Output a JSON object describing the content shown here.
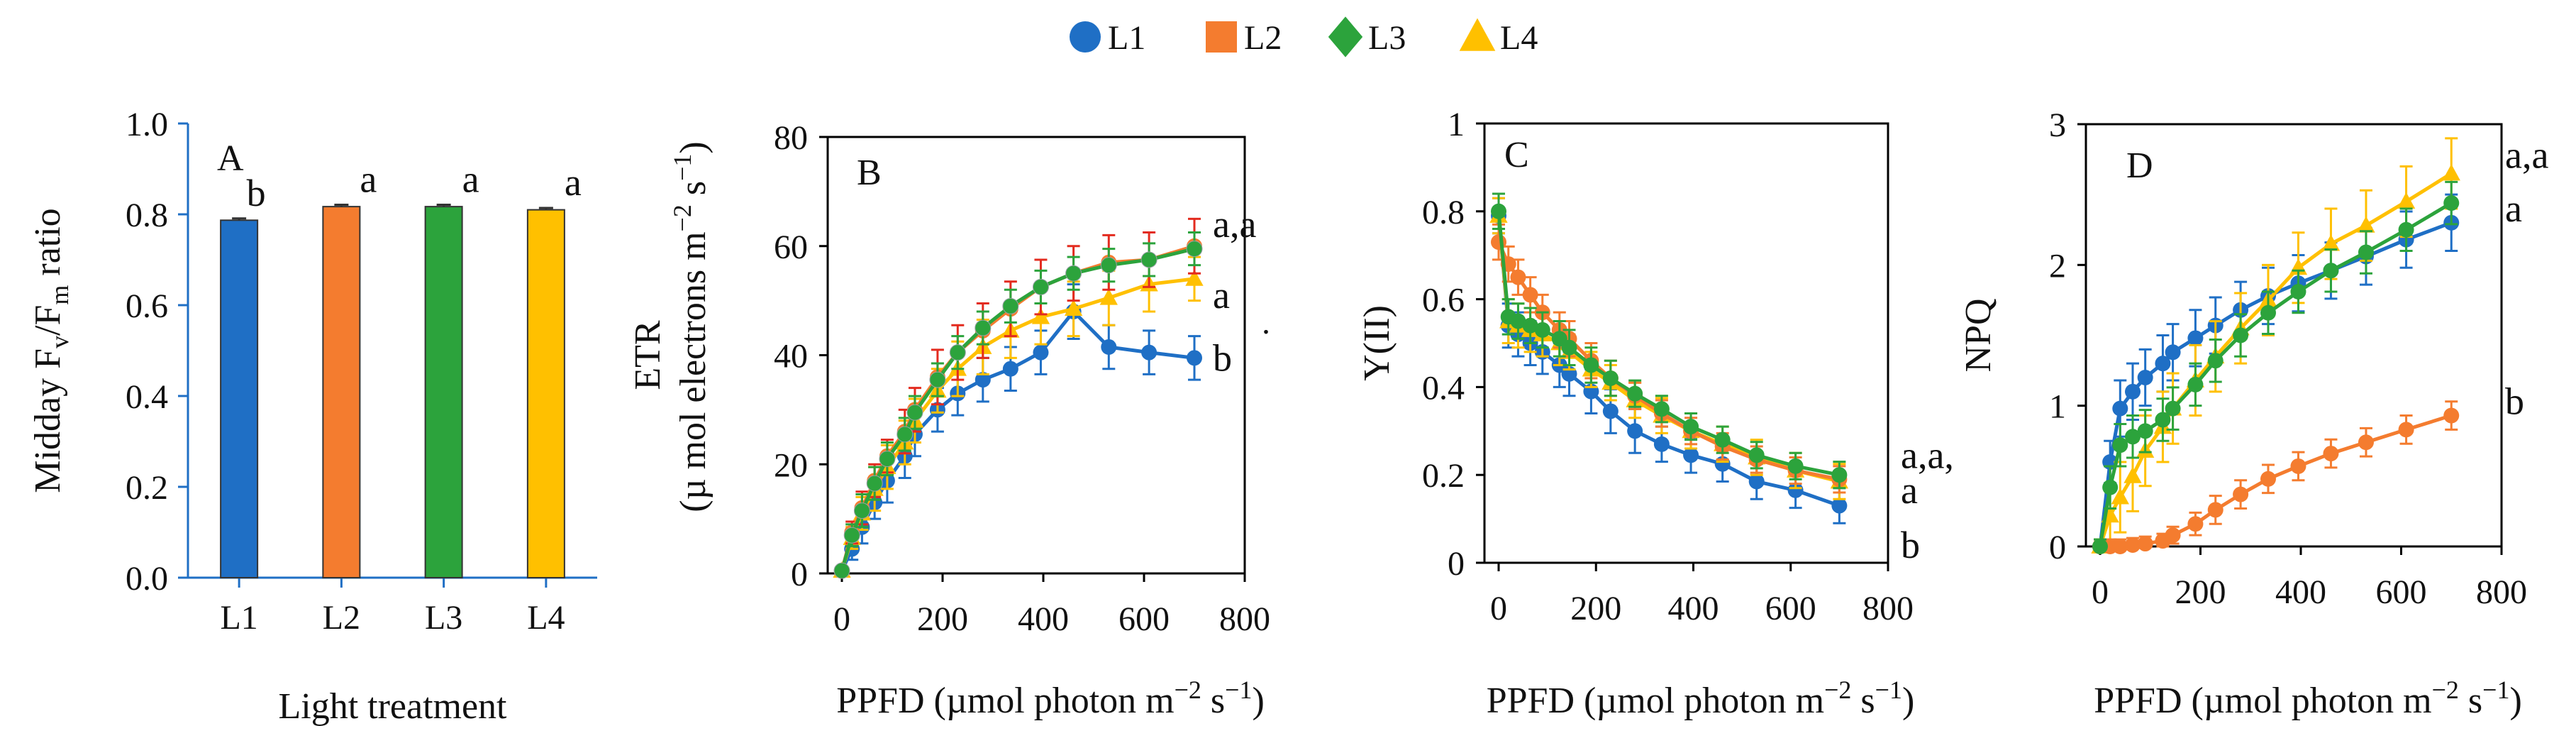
{
  "legend": [
    {
      "label": "L1",
      "color": "#1f6fc5",
      "marker": "circle"
    },
    {
      "label": "L2",
      "color": "#f47c2f",
      "marker": "square"
    },
    {
      "label": "L3",
      "color": "#2ca33c",
      "marker": "diamond"
    },
    {
      "label": "L4",
      "color": "#ffc000",
      "marker": "triangle"
    }
  ],
  "colors": {
    "L1": "#1f6fc5",
    "L2": "#f47c2f",
    "L3": "#2ca33c",
    "L4": "#ffc000",
    "L2_err": "#e32b1f",
    "axis_blue": "#1f6fc5",
    "axis_black": "#000000"
  },
  "chart_data": [
    {
      "id": "A",
      "type": "bar",
      "panel_label": "A",
      "categories": [
        "L1",
        "L2",
        "L3",
        "L4"
      ],
      "values": [
        0.787,
        0.817,
        0.817,
        0.81
      ],
      "errors": [
        0.004,
        0.004,
        0.004,
        0.004
      ],
      "significance": [
        "b",
        "a",
        "a",
        "a"
      ],
      "ylabel_pre": "Midday F",
      "ylabel_v": "v",
      "ylabel_mid": "/F",
      "ylabel_m": "m",
      "ylabel_post": " ratio",
      "xlabel": "Light treatment",
      "ylim": [
        0,
        1.0
      ],
      "yticks": [
        "0.0",
        "0.2",
        "0.4",
        "0.6",
        "0.8",
        "1.0"
      ]
    },
    {
      "id": "B",
      "type": "line",
      "panel_label": "B",
      "ylabel_line1": "ETR",
      "ylabel_line2_pre": "(µ mol electrons m",
      "ylabel_line2_sup1": "−2",
      "ylabel_line2_mid": " s",
      "ylabel_line2_sup2": "−1",
      "ylabel_line2_post": ")",
      "xlabel_pre": "PPFD (µmol photon m",
      "xlabel_sup1": "−2",
      "xlabel_mid": " s",
      "xlabel_sup2": "−1",
      "xlabel_post": ")",
      "xlim": [
        0,
        800
      ],
      "ylim": [
        0,
        80
      ],
      "xticks": [
        "0",
        "200",
        "400",
        "600",
        "800"
      ],
      "yticks": [
        "0",
        "20",
        "40",
        "60",
        "80"
      ],
      "x": [
        0,
        20,
        40,
        65,
        90,
        125,
        145,
        190,
        230,
        280,
        335,
        395,
        460,
        530,
        610,
        700
      ],
      "series": [
        {
          "name": "L1",
          "values": [
            0.5,
            4.5,
            8.5,
            13,
            17,
            21.5,
            25.5,
            30,
            33,
            35.5,
            37.5,
            40.5,
            48,
            41.5,
            40.5,
            39.5
          ],
          "err": [
            0.5,
            2,
            3,
            3,
            4,
            4,
            4,
            4,
            4,
            4,
            4,
            4,
            5,
            4,
            4,
            4
          ]
        },
        {
          "name": "L2",
          "values": [
            0.5,
            7.5,
            12,
            17,
            21.5,
            26,
            30,
            36,
            40.5,
            44.5,
            48.5,
            52.5,
            55,
            57,
            57.5,
            60
          ],
          "err": [
            0.5,
            2,
            3,
            3,
            3,
            4,
            4,
            5,
            5,
            5,
            5,
            5,
            5,
            5,
            5,
            5
          ]
        },
        {
          "name": "L3",
          "values": [
            0.5,
            7,
            11.5,
            16.5,
            21,
            25.5,
            29.5,
            35.5,
            40.5,
            45,
            49,
            52.5,
            55,
            56.5,
            57.5,
            59.5
          ],
          "err": [
            0.5,
            2,
            3,
            3,
            3,
            3,
            3,
            3,
            3,
            3,
            3,
            3,
            3,
            3,
            3,
            3
          ]
        },
        {
          "name": "L4",
          "values": [
            0.5,
            6.5,
            11,
            15.5,
            19.5,
            24,
            28,
            33.5,
            37.5,
            41.5,
            44.5,
            47,
            48.5,
            50.5,
            53,
            54
          ],
          "err": [
            0.5,
            2,
            3,
            4,
            4,
            4,
            4,
            4,
            5,
            5,
            5,
            5,
            5,
            5,
            5,
            4
          ]
        }
      ],
      "annotations": [
        "a,a",
        "a",
        "b"
      ],
      "annotation_values": [
        64,
        51,
        39.5
      ],
      "stray_mark": "."
    },
    {
      "id": "C",
      "type": "line",
      "panel_label": "C",
      "ylabel": "Y(II)",
      "xlabel_pre": "PPFD (µmol photon m",
      "xlabel_sup1": "−2",
      "xlabel_mid": " s",
      "xlabel_sup2": "−1",
      "xlabel_post": ")",
      "xlim": [
        0,
        800
      ],
      "ylim": [
        0,
        1
      ],
      "xticks": [
        "0",
        "200",
        "400",
        "600",
        "800"
      ],
      "yticks": [
        "0",
        "0.2",
        "0.4",
        "0.6",
        "0.8",
        "1"
      ],
      "x": [
        0,
        20,
        40,
        65,
        90,
        125,
        145,
        190,
        230,
        280,
        335,
        395,
        460,
        530,
        610,
        700
      ],
      "series": [
        {
          "name": "L1",
          "values": [
            0.79,
            0.54,
            0.52,
            0.5,
            0.48,
            0.45,
            0.43,
            0.39,
            0.345,
            0.3,
            0.27,
            0.245,
            0.225,
            0.185,
            0.165,
            0.13
          ],
          "err": [
            0.04,
            0.05,
            0.05,
            0.05,
            0.05,
            0.05,
            0.05,
            0.05,
            0.05,
            0.05,
            0.04,
            0.04,
            0.04,
            0.04,
            0.04,
            0.04
          ]
        },
        {
          "name": "L2",
          "values": [
            0.73,
            0.68,
            0.65,
            0.61,
            0.57,
            0.53,
            0.51,
            0.46,
            0.42,
            0.38,
            0.34,
            0.3,
            0.265,
            0.235,
            0.21,
            0.19
          ],
          "err": [
            0.04,
            0.04,
            0.04,
            0.04,
            0.04,
            0.04,
            0.04,
            0.04,
            0.04,
            0.03,
            0.03,
            0.03,
            0.03,
            0.03,
            0.03,
            0.03
          ]
        },
        {
          "name": "L3",
          "values": [
            0.8,
            0.56,
            0.55,
            0.54,
            0.53,
            0.51,
            0.49,
            0.45,
            0.42,
            0.385,
            0.35,
            0.31,
            0.28,
            0.245,
            0.22,
            0.2
          ],
          "err": [
            0.04,
            0.04,
            0.04,
            0.04,
            0.04,
            0.04,
            0.04,
            0.04,
            0.04,
            0.03,
            0.03,
            0.03,
            0.03,
            0.03,
            0.03,
            0.03
          ]
        },
        {
          "name": "L4",
          "values": [
            0.79,
            0.55,
            0.54,
            0.53,
            0.52,
            0.5,
            0.48,
            0.44,
            0.41,
            0.37,
            0.335,
            0.3,
            0.27,
            0.24,
            0.21,
            0.185
          ],
          "err": [
            0.04,
            0.05,
            0.05,
            0.05,
            0.05,
            0.05,
            0.04,
            0.04,
            0.04,
            0.04,
            0.04,
            0.04,
            0.04,
            0.04,
            0.04,
            0.04
          ]
        }
      ],
      "annotations": [
        "a,a,",
        "a",
        "b"
      ],
      "annotation_values": [
        0.245,
        0.165,
        0.04
      ]
    },
    {
      "id": "D",
      "type": "line",
      "panel_label": "D",
      "ylabel": "NPQ",
      "xlabel_pre": "PPFD (µmol photon m",
      "xlabel_sup1": "−2",
      "xlabel_mid": " s",
      "xlabel_sup2": "−1",
      "xlabel_post": ")",
      "xlim": [
        0,
        800
      ],
      "ylim": [
        0,
        3
      ],
      "xticks": [
        "0",
        "200",
        "400",
        "600",
        "800"
      ],
      "yticks": [
        "0",
        "1",
        "2",
        "3"
      ],
      "x": [
        0,
        20,
        40,
        65,
        90,
        125,
        145,
        190,
        230,
        280,
        335,
        395,
        460,
        530,
        610,
        700
      ],
      "series": [
        {
          "name": "L1",
          "values": [
            0,
            0.6,
            0.98,
            1.1,
            1.2,
            1.3,
            1.38,
            1.48,
            1.57,
            1.68,
            1.78,
            1.87,
            1.96,
            2.06,
            2.18,
            2.3
          ],
          "err": [
            0.05,
            0.15,
            0.2,
            0.2,
            0.2,
            0.2,
            0.2,
            0.2,
            0.2,
            0.2,
            0.2,
            0.2,
            0.2,
            0.2,
            0.2,
            0.2
          ]
        },
        {
          "name": "L2",
          "values": [
            0,
            0,
            0,
            0.01,
            0.02,
            0.04,
            0.08,
            0.16,
            0.26,
            0.37,
            0.48,
            0.57,
            0.66,
            0.74,
            0.83,
            0.93
          ],
          "err": [
            0.03,
            0.05,
            0.05,
            0.05,
            0.05,
            0.05,
            0.06,
            0.08,
            0.1,
            0.1,
            0.1,
            0.1,
            0.1,
            0.1,
            0.1,
            0.1
          ]
        },
        {
          "name": "L3",
          "values": [
            0,
            0.42,
            0.72,
            0.78,
            0.82,
            0.9,
            0.98,
            1.15,
            1.32,
            1.5,
            1.66,
            1.81,
            1.96,
            2.09,
            2.25,
            2.44
          ],
          "err": [
            0.05,
            0.15,
            0.15,
            0.15,
            0.15,
            0.15,
            0.15,
            0.15,
            0.15,
            0.15,
            0.15,
            0.15,
            0.15,
            0.15,
            0.15,
            0.15
          ]
        },
        {
          "name": "L4",
          "values": [
            0,
            0.22,
            0.35,
            0.5,
            0.68,
            0.85,
            0.98,
            1.18,
            1.35,
            1.55,
            1.75,
            1.98,
            2.15,
            2.28,
            2.45,
            2.65
          ],
          "err": [
            0.05,
            0.2,
            0.25,
            0.25,
            0.25,
            0.25,
            0.25,
            0.25,
            0.25,
            0.25,
            0.25,
            0.25,
            0.25,
            0.25,
            0.25,
            0.25
          ]
        }
      ],
      "annotations": [
        "a,a",
        "a",
        "b"
      ],
      "annotation_values": [
        2.78,
        2.4,
        1.03
      ]
    }
  ]
}
